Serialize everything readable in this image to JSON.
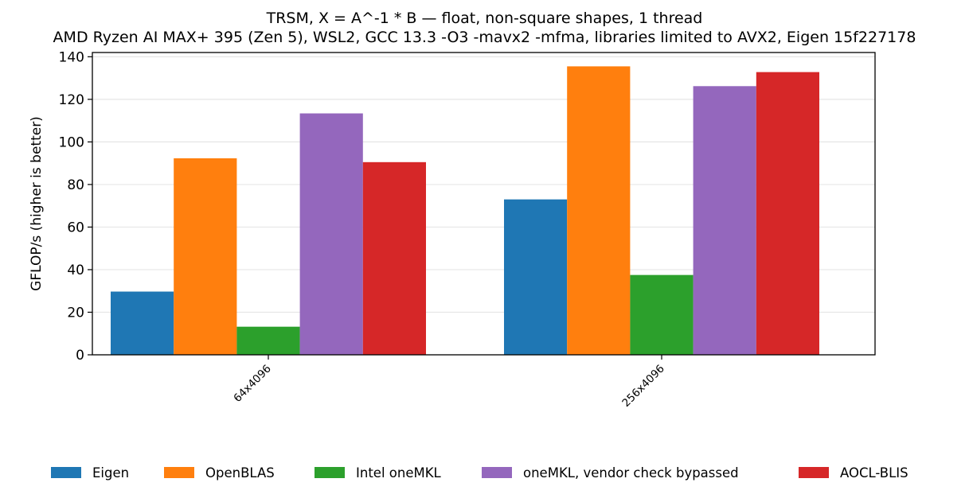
{
  "title_line1": "TRSM, X = A^-1 * B — float, non-square shapes, 1 thread",
  "title_line2": "AMD Ryzen AI MAX+ 395 (Zen 5), WSL2, GCC 13.3 -O3 -mavx2 -mfma, libraries limited to AVX2, Eigen 15f227178",
  "chart_data": {
    "type": "bar",
    "title": "TRSM, X = A^-1 * B — float, non-square shapes, 1 thread",
    "subtitle": "AMD Ryzen AI MAX+ 395 (Zen 5), WSL2, GCC 13.3 -O3 -mavx2 -mfma, libraries limited to AVX2, Eigen 15f227178",
    "categories": [
      "64x4096",
      "256x4096"
    ],
    "series": [
      {
        "name": "Eigen",
        "color": "#1f77b4",
        "values": [
          29.7,
          73.0
        ]
      },
      {
        "name": "OpenBLAS",
        "color": "#ff7f0e",
        "values": [
          92.3,
          135.5
        ]
      },
      {
        "name": "Intel oneMKL",
        "color": "#2ca02c",
        "values": [
          13.2,
          37.5
        ]
      },
      {
        "name": "oneMKL, vendor check bypassed",
        "color": "#9467bd",
        "values": [
          113.4,
          126.2
        ]
      },
      {
        "name": "AOCL-BLIS",
        "color": "#d62728",
        "values": [
          90.5,
          132.8
        ]
      }
    ],
    "xlabel": "",
    "ylabel": "GFLOP/s (higher is better)",
    "ylim": [
      0,
      142
    ],
    "yticks": [
      0,
      20,
      40,
      60,
      80,
      100,
      120,
      140
    ],
    "grid": "horizontal",
    "legend_position": "bottom"
  }
}
